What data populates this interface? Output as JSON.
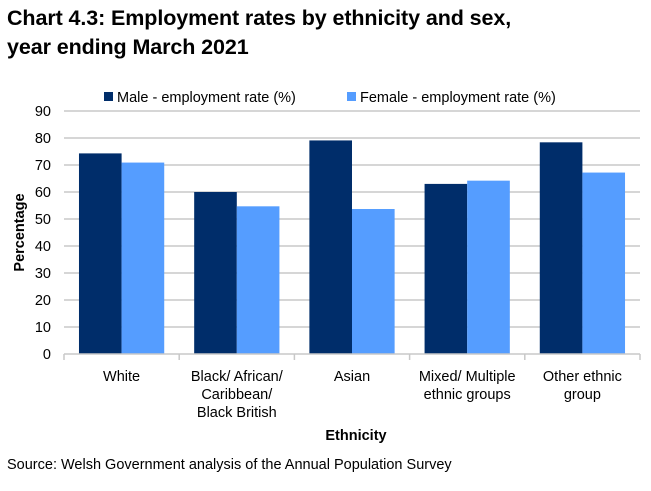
{
  "chart_data": {
    "type": "bar",
    "title": [
      "Chart 4.3: Employment rates by ethnicity and sex,",
      "year ending March 2021"
    ],
    "xlabel": "Ethnicity",
    "ylabel": "Percentage",
    "ylim": [
      0,
      90
    ],
    "yticks": [
      0,
      10,
      20,
      30,
      40,
      50,
      60,
      70,
      80,
      90
    ],
    "grid": true,
    "legend_position": "top",
    "categories": [
      [
        "White"
      ],
      [
        "Black/ African/",
        "Caribbean/",
        "Black British"
      ],
      [
        "Asian"
      ],
      [
        "Mixed/ Multiple",
        "ethnic groups"
      ],
      [
        "Other ethnic",
        "group"
      ]
    ],
    "series": [
      {
        "name": "Male - employment rate (%)",
        "color": "#002d6a",
        "values": [
          74.3,
          60.0,
          79.1,
          63.0,
          78.4
        ]
      },
      {
        "name": "Female - employment rate (%)",
        "color": "#559dff",
        "values": [
          70.9,
          54.7,
          53.7,
          64.2,
          67.2
        ]
      }
    ],
    "source": "Source: Welsh Government analysis of the Annual Population Survey"
  }
}
